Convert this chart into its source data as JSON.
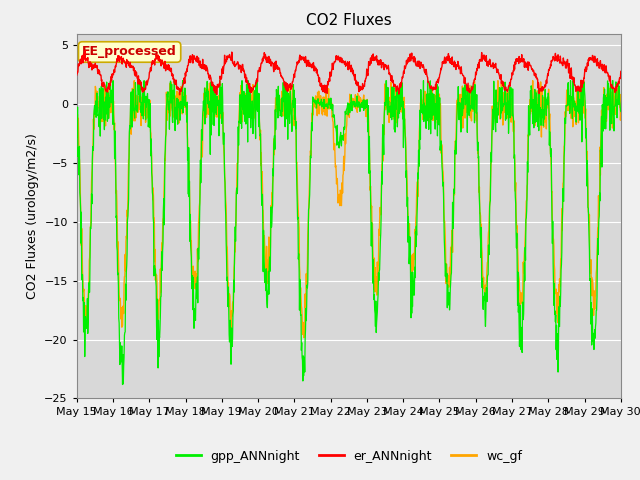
{
  "title": "CO2 Fluxes",
  "ylabel": "CO2 Fluxes (urology/m2/s)",
  "ylim": [
    -25,
    6
  ],
  "yticks": [
    -25,
    -20,
    -15,
    -10,
    -5,
    0,
    5
  ],
  "fig_bg_color": "#f0f0f0",
  "plot_bg_color": "#d8d8d8",
  "line_colors": {
    "gpp": "#00ee00",
    "er": "#ff0000",
    "wc": "#ffa500"
  },
  "legend_labels": [
    "gpp_ANNnight",
    "er_ANNnight",
    "wc_gf"
  ],
  "annotation_text": "EE_processed",
  "annotation_bg": "#ffffcc",
  "annotation_edge": "#ccaa00",
  "n_points": 1440,
  "title_fontsize": 11,
  "label_fontsize": 9,
  "tick_fontsize": 8,
  "legend_fontsize": 9
}
